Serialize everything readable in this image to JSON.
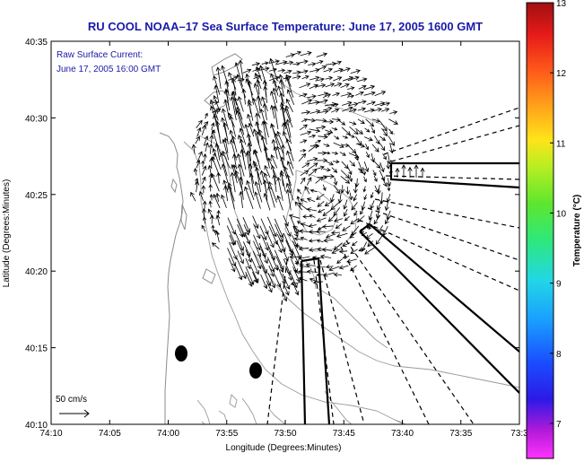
{
  "title": "RU COOL  NOAA–17  Sea Surface Temperature:  June 17, 2005 1600 GMT",
  "annotation": {
    "line1": "Raw Surface Current:",
    "line2": "June 17, 2005 16:00 GMT"
  },
  "scale_label": "50 cm/s",
  "xlabel": "Longitude (Degrees:Minutes)",
  "ylabel": "Latitude (Degrees:Minutes)",
  "colorbar": {
    "label": "Temperature (°C)",
    "min": 6.5,
    "max": 13,
    "ticks": [
      "7",
      "8",
      "9",
      "10",
      "11",
      "12",
      "13"
    ]
  },
  "chart_data": {
    "type": "map",
    "x_ticks": [
      "74:10",
      "74:05",
      "74:00",
      "73:55",
      "73:50",
      "73:45",
      "73:40",
      "73:35",
      "73:3"
    ],
    "x_range_deg": [
      -74.1667,
      -73.5
    ],
    "y_ticks": [
      "40:35",
      "40:30",
      "40:25",
      "40:20",
      "40:15",
      "40:10"
    ],
    "y_range_deg": [
      40.1667,
      40.5833
    ]
  },
  "colors": {
    "title": "#1a1aa8",
    "annotation": "#1a1aa8",
    "contours": "#8c8c8c",
    "coast": "#8c8c8c",
    "vectors": "#000000"
  }
}
